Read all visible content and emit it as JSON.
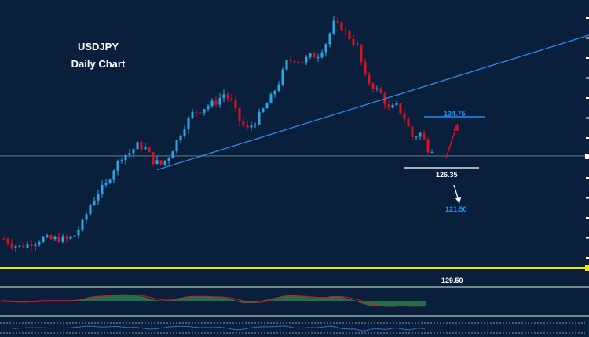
{
  "header": {
    "symbol": "USDJPY",
    "timeframe": "Daily Chart"
  },
  "colors": {
    "background": "#0a1f3c",
    "bull": "#29a8e8",
    "bear": "#e0101a",
    "trendline": "#2a8cf0",
    "macd_hist": "#3cbf5a",
    "signal": "#e0101a",
    "yellow_level": "#f2e600",
    "target_label": "#2a8cf0",
    "support_label": "#ffffff"
  },
  "chart_data": {
    "type": "candlestick",
    "title": "USDJPY Daily Chart",
    "ylim": [
      109.8,
      154.0
    ],
    "closes": [
      114.6,
      113.7,
      113.3,
      113.7,
      114.2,
      114.7,
      114.5,
      114.6,
      114.5,
      115.2,
      117.2,
      120.2,
      122.3,
      123.6,
      126.2,
      128.2,
      128.8,
      130.1,
      129.5,
      127.5,
      126.9,
      128.2,
      130.7,
      133.3,
      135.3,
      135.9,
      136.6,
      137.2,
      138.5,
      137.2,
      134.0,
      132.7,
      134.0,
      135.9,
      137.9,
      140.4,
      143.7,
      144.3,
      143.9,
      144.7,
      145.0,
      146.9,
      150.1,
      149.5,
      147.8,
      146.3,
      141.1,
      139.8,
      138.5,
      135.9,
      136.6,
      134.6,
      131.4,
      132.0,
      129.5
    ],
    "current_price": 128.3,
    "trendline": {
      "from": [
        19.5,
        126.0
      ],
      "to": [
        74.5,
        148.2
      ]
    },
    "levels": {
      "resistance": {
        "value": 134.75,
        "label": "134.75"
      },
      "support": {
        "value": 126.35,
        "label": "126.35"
      },
      "target": {
        "value": 121.5,
        "label": "121.50"
      },
      "other": {
        "label": "129.50"
      }
    },
    "indicators": [
      "MACD histogram with signal line",
      "oscillator line"
    ]
  }
}
